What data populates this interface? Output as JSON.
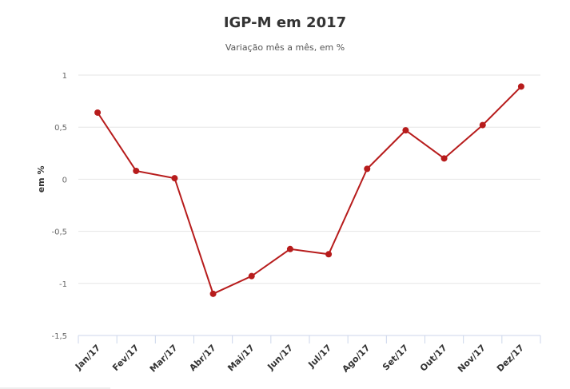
{
  "chart_data": {
    "type": "line",
    "title": "IGP-M em 2017",
    "subtitle": "Variação mês a mês, em %",
    "xlabel": "",
    "ylabel": "em %",
    "categories": [
      "Jan/17",
      "Fev/17",
      "Mar/17",
      "Abr/17",
      "Mai/17",
      "Jun/17",
      "Jul/17",
      "Ago/17",
      "Set/17",
      "Out/17",
      "Nov/17",
      "Dez/17"
    ],
    "series": [
      {
        "name": "IGP-M",
        "values": [
          0.64,
          0.08,
          0.01,
          -1.1,
          -0.93,
          -0.67,
          -0.72,
          0.1,
          0.47,
          0.2,
          0.52,
          0.89
        ],
        "color": "#b71c1c"
      }
    ],
    "ylim": [
      -1.5,
      1
    ],
    "yticks": [
      1,
      0.5,
      0,
      -0.5,
      -1,
      -1.5
    ],
    "ytick_labels": [
      "1",
      "0,5",
      "0",
      "-0,5",
      "-1",
      "-1,5"
    ],
    "grid": true,
    "legend": "none"
  }
}
